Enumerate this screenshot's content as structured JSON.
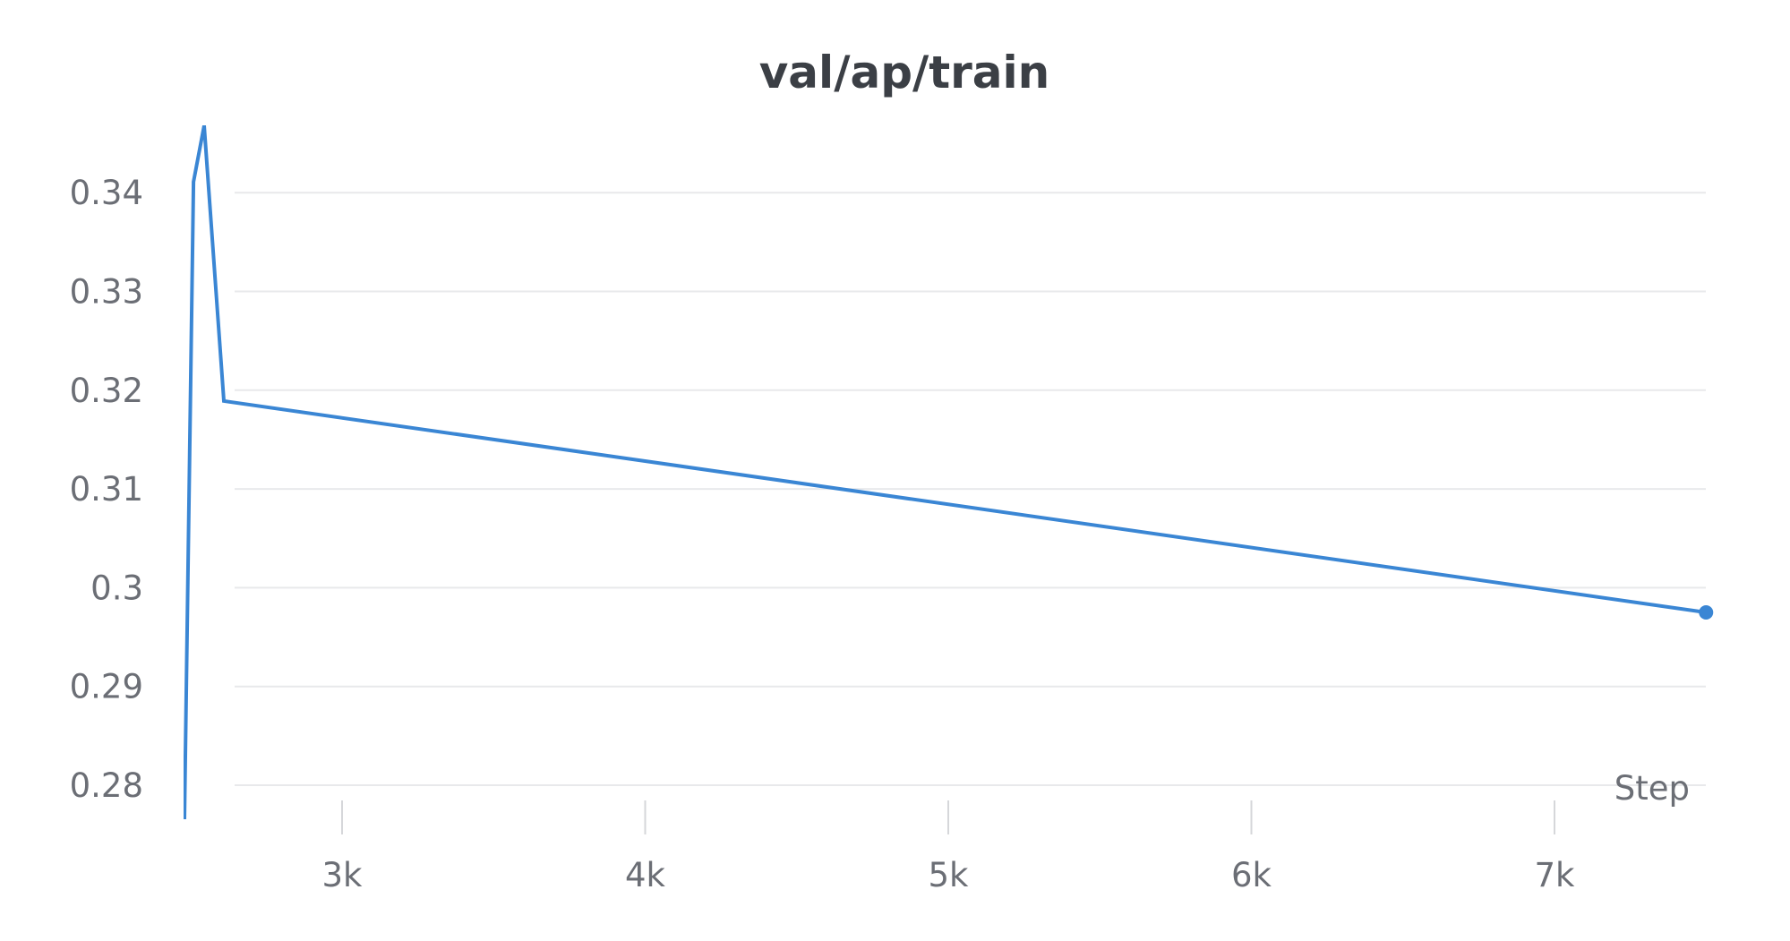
{
  "chart_data": {
    "type": "line",
    "title": "val/ap/train",
    "xlabel": "Step",
    "ylabel": "",
    "x_ticks": [
      3000,
      4000,
      5000,
      6000,
      7000
    ],
    "x_tick_labels": [
      "3k",
      "4k",
      "5k",
      "6k",
      "7k"
    ],
    "y_ticks": [
      0.28,
      0.29,
      0.3,
      0.31,
      0.32,
      0.33,
      0.34
    ],
    "y_tick_labels": [
      "0.28",
      "0.29",
      "0.3",
      "0.31",
      "0.32",
      "0.33",
      "0.34"
    ],
    "xlim": [
      2420,
      7500
    ],
    "ylim": [
      0.2765,
      0.3465
    ],
    "grid": true,
    "legend": "none",
    "series": [
      {
        "color": "#3a86d4",
        "x": [
          2480,
          2510,
          2545,
          2610,
          7500
        ],
        "y": [
          0.2765,
          0.3411,
          0.3468,
          0.3189,
          0.2975
        ],
        "end_marker": true
      }
    ]
  }
}
